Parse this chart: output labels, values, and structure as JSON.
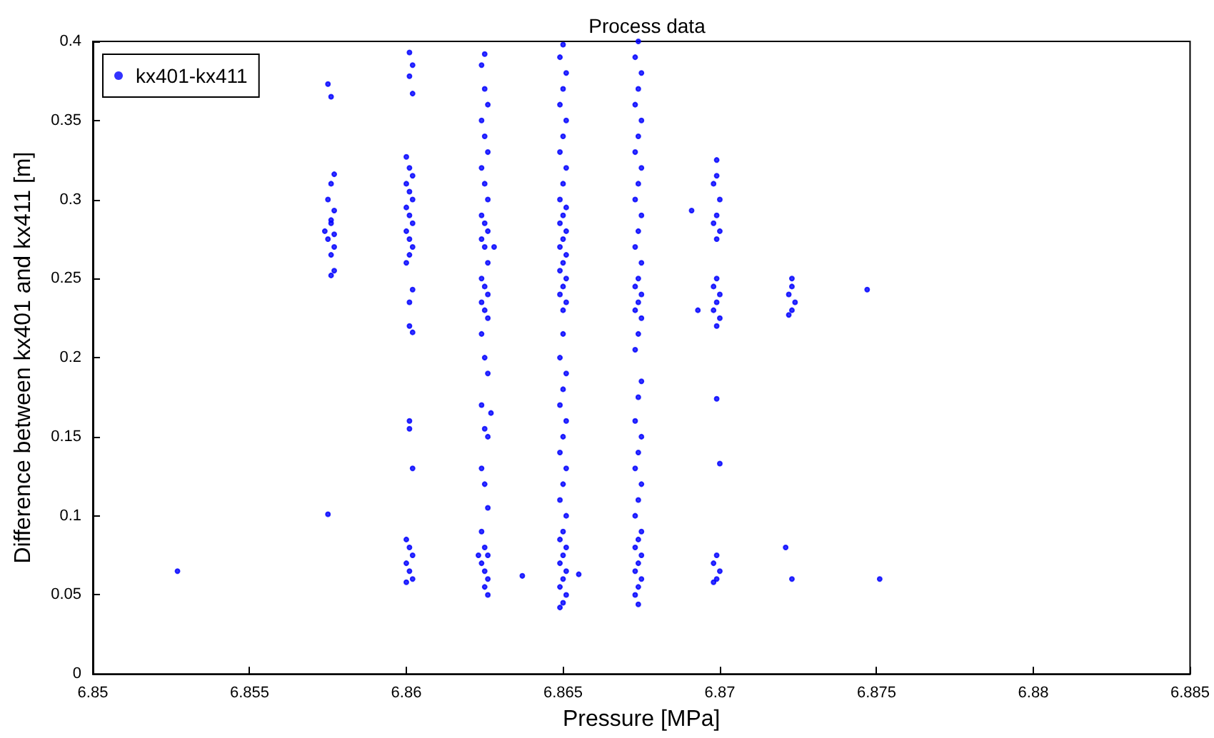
{
  "chart_data": {
    "type": "scatter",
    "title": "Process data",
    "xlabel": "Pressure [MPa]",
    "ylabel": "Difference between kx401 and kx411 [m]",
    "xlim": [
      6.85,
      6.885
    ],
    "xticks": [
      6.85,
      6.855,
      6.86,
      6.865,
      6.87,
      6.875,
      6.88,
      6.885
    ],
    "ylim": [
      0,
      0.4
    ],
    "yticks": [
      0,
      0.05,
      0.1,
      0.15,
      0.2,
      0.25,
      0.3,
      0.35,
      0.4
    ],
    "grid": false,
    "legend": "top left",
    "marker": "circle",
    "series": [
      {
        "name": "kx401-kx411",
        "color": "#0000ff",
        "x": [
          6.8527,
          6.8575,
          6.8576,
          6.8577,
          6.8576,
          6.8575,
          6.8577,
          6.8576,
          6.8574,
          6.8577,
          6.8576,
          6.8575,
          6.8577,
          6.8576,
          6.8577,
          6.8576,
          6.8575,
          6.8601,
          6.8602,
          6.8601,
          6.8602,
          6.86,
          6.8601,
          6.8602,
          6.86,
          6.8601,
          6.8602,
          6.86,
          6.8601,
          6.8602,
          6.86,
          6.8601,
          6.8602,
          6.8601,
          6.86,
          6.8602,
          6.8601,
          6.8601,
          6.8602,
          6.8601,
          6.8601,
          6.8602,
          6.86,
          6.8601,
          6.8602,
          6.86,
          6.8601,
          6.86,
          6.8602,
          6.8625,
          6.8624,
          6.8625,
          6.8626,
          6.8624,
          6.8625,
          6.8626,
          6.8624,
          6.8625,
          6.8626,
          6.8624,
          6.8625,
          6.8626,
          6.8624,
          6.8625,
          6.8626,
          6.8624,
          6.8625,
          6.8626,
          6.8624,
          6.8625,
          6.8626,
          6.8624,
          6.8625,
          6.8626,
          6.8624,
          6.8625,
          6.8626,
          6.8624,
          6.8625,
          6.8626,
          6.8624,
          6.8625,
          6.8626,
          6.8624,
          6.8625,
          6.8626,
          6.8623,
          6.8625,
          6.8626,
          6.8628,
          6.8627,
          6.8637,
          6.865,
          6.8649,
          6.8651,
          6.865,
          6.8649,
          6.8651,
          6.865,
          6.8649,
          6.8651,
          6.865,
          6.8649,
          6.8651,
          6.865,
          6.8649,
          6.8651,
          6.865,
          6.8649,
          6.8651,
          6.865,
          6.8649,
          6.8651,
          6.865,
          6.8649,
          6.8651,
          6.865,
          6.865,
          6.8649,
          6.8651,
          6.865,
          6.8649,
          6.8651,
          6.865,
          6.8649,
          6.8651,
          6.865,
          6.8649,
          6.8651,
          6.865,
          6.8649,
          6.8651,
          6.865,
          6.8649,
          6.8651,
          6.865,
          6.8649,
          6.8651,
          6.865,
          6.8649,
          6.8655,
          6.8674,
          6.8673,
          6.8675,
          6.8674,
          6.8673,
          6.8675,
          6.8674,
          6.8673,
          6.8675,
          6.8674,
          6.8673,
          6.8675,
          6.8674,
          6.8673,
          6.8675,
          6.8674,
          6.8673,
          6.8675,
          6.8674,
          6.8673,
          6.8675,
          6.8674,
          6.8673,
          6.8675,
          6.8674,
          6.8673,
          6.8675,
          6.8674,
          6.8673,
          6.8675,
          6.8674,
          6.8673,
          6.8675,
          6.8674,
          6.8673,
          6.8675,
          6.8674,
          6.8673,
          6.8675,
          6.8674,
          6.8673,
          6.8674,
          6.8699,
          6.8699,
          6.8698,
          6.87,
          6.8699,
          6.8698,
          6.87,
          6.8699,
          6.8699,
          6.8698,
          6.87,
          6.8699,
          6.8698,
          6.87,
          6.8699,
          6.8699,
          6.87,
          6.8699,
          6.8698,
          6.87,
          6.8699,
          6.8698,
          6.8691,
          6.8693,
          6.8723,
          6.8723,
          6.8722,
          6.8724,
          6.8723,
          6.8722,
          6.8721,
          6.8723,
          6.8747,
          6.8751
        ],
        "values": [
          0.065,
          0.373,
          0.365,
          0.316,
          0.31,
          0.3,
          0.293,
          0.287,
          0.28,
          0.278,
          0.285,
          0.275,
          0.27,
          0.265,
          0.255,
          0.252,
          0.101,
          0.393,
          0.385,
          0.378,
          0.367,
          0.327,
          0.32,
          0.315,
          0.31,
          0.305,
          0.3,
          0.295,
          0.29,
          0.285,
          0.28,
          0.275,
          0.27,
          0.265,
          0.26,
          0.243,
          0.235,
          0.22,
          0.216,
          0.16,
          0.155,
          0.13,
          0.085,
          0.08,
          0.075,
          0.07,
          0.065,
          0.058,
          0.06,
          0.392,
          0.385,
          0.37,
          0.36,
          0.35,
          0.34,
          0.33,
          0.32,
          0.31,
          0.3,
          0.29,
          0.285,
          0.28,
          0.275,
          0.27,
          0.26,
          0.25,
          0.245,
          0.24,
          0.235,
          0.23,
          0.225,
          0.215,
          0.2,
          0.19,
          0.17,
          0.155,
          0.15,
          0.13,
          0.12,
          0.105,
          0.09,
          0.08,
          0.075,
          0.07,
          0.065,
          0.06,
          0.075,
          0.055,
          0.05,
          0.27,
          0.165,
          0.062,
          0.398,
          0.39,
          0.38,
          0.37,
          0.36,
          0.35,
          0.34,
          0.33,
          0.32,
          0.31,
          0.3,
          0.295,
          0.29,
          0.285,
          0.28,
          0.275,
          0.27,
          0.265,
          0.26,
          0.255,
          0.25,
          0.245,
          0.24,
          0.235,
          0.23,
          0.215,
          0.2,
          0.19,
          0.18,
          0.17,
          0.16,
          0.15,
          0.14,
          0.13,
          0.12,
          0.11,
          0.1,
          0.09,
          0.085,
          0.08,
          0.075,
          0.07,
          0.065,
          0.06,
          0.055,
          0.05,
          0.045,
          0.042,
          0.063,
          0.4,
          0.39,
          0.38,
          0.37,
          0.36,
          0.35,
          0.34,
          0.33,
          0.32,
          0.31,
          0.3,
          0.29,
          0.28,
          0.27,
          0.26,
          0.25,
          0.245,
          0.24,
          0.235,
          0.23,
          0.225,
          0.215,
          0.205,
          0.185,
          0.175,
          0.16,
          0.15,
          0.14,
          0.13,
          0.12,
          0.11,
          0.1,
          0.09,
          0.085,
          0.08,
          0.075,
          0.07,
          0.065,
          0.06,
          0.055,
          0.05,
          0.044,
          0.325,
          0.315,
          0.31,
          0.3,
          0.29,
          0.285,
          0.28,
          0.275,
          0.25,
          0.245,
          0.24,
          0.235,
          0.23,
          0.225,
          0.22,
          0.174,
          0.133,
          0.075,
          0.07,
          0.065,
          0.06,
          0.058,
          0.293,
          0.23,
          0.25,
          0.245,
          0.24,
          0.235,
          0.23,
          0.227,
          0.08,
          0.06,
          0.243,
          0.06
        ]
      }
    ]
  }
}
